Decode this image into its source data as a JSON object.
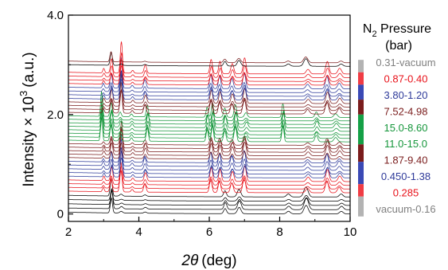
{
  "chart_data": {
    "type": "line",
    "xlabel_symbol": "2θ",
    "xlabel_unit": "(deg)",
    "ylabel_prefix": "Intensity × 10",
    "ylabel_exp": "3",
    "ylabel_unit": "(a.u.)",
    "xlim": [
      2,
      10
    ],
    "ylim": [
      -0.15,
      4.0
    ],
    "x_ticks": [
      2,
      4,
      6,
      8,
      10
    ],
    "x_tick_labels": [
      "2",
      "4",
      "6",
      "8",
      "10"
    ],
    "y_ticks": [
      0,
      2.0,
      4.0
    ],
    "y_tick_labels": [
      "0",
      "2.0",
      "4.0"
    ],
    "legend": {
      "title_line1": "N",
      "title_sub": "2",
      "title_rest": " Pressure",
      "title_line2": "(bar)",
      "position": "right",
      "entries": [
        {
          "label": "0.31-vacuum",
          "color": "#808080",
          "bar_color": "#b3b3b3",
          "y_from": 2.85,
          "y_to": 3.1
        },
        {
          "label": "0.87-0.40",
          "color": "#e8121a",
          "bar_color": "#f03c44",
          "y_from": 2.6,
          "y_to": 2.85
        },
        {
          "label": "3.80-1.20",
          "color": "#2e3a9a",
          "bar_color": "#3a49b5",
          "y_from": 2.3,
          "y_to": 2.6
        },
        {
          "label": "7.52-4.98",
          "color": "#7a1c1c",
          "bar_color": "#7a1c1c",
          "y_from": 2.0,
          "y_to": 2.3
        },
        {
          "label": "15.0-8.60",
          "color": "#15963b",
          "bar_color": "#15a046",
          "y_from": 1.7,
          "y_to": 2.0
        },
        {
          "label": "11.0-15.0",
          "color": "#15963b",
          "bar_color": "#15a046",
          "y_from": 1.4,
          "y_to": 1.7
        },
        {
          "label": "1.87-9.40",
          "color": "#7a1c1c",
          "bar_color": "#7a1c1c",
          "y_from": 1.05,
          "y_to": 1.4
        },
        {
          "label": "0.450-1.38",
          "color": "#2e3a9a",
          "bar_color": "#3a49b5",
          "y_from": 0.6,
          "y_to": 1.05
        },
        {
          "label": "0.285",
          "color": "#e8121a",
          "bar_color": "#f03c44",
          "y_from": 0.35,
          "y_to": 0.6
        },
        {
          "label": "vacuum-0.16",
          "color": "#808080",
          "bar_color": "#b3b3b3",
          "y_from": -0.05,
          "y_to": 0.35
        }
      ]
    },
    "series": [
      {
        "color": "#000000",
        "count": 5,
        "offset_start": 0.0,
        "offset_step": 0.085
      },
      {
        "color": "#e8121a",
        "count": 4,
        "offset_start": 0.425,
        "offset_step": 0.075
      },
      {
        "color": "#2e3a9a",
        "count": 5,
        "offset_start": 0.725,
        "offset_step": 0.075
      },
      {
        "color": "#7a1c1c",
        "count": 5,
        "offset_start": 1.1,
        "offset_step": 0.07
      },
      {
        "color": "#15963b",
        "count": 8,
        "offset_start": 1.45,
        "offset_step": 0.07
      },
      {
        "color": "#7a1c1c",
        "count": 4,
        "offset_start": 2.01,
        "offset_step": 0.07
      },
      {
        "color": "#2e3a9a",
        "count": 4,
        "offset_start": 2.29,
        "offset_step": 0.075
      },
      {
        "color": "#e8121a",
        "count": 4,
        "offset_start": 2.59,
        "offset_step": 0.075
      },
      {
        "color": "#000000",
        "count": 1,
        "offset_start": 2.97,
        "offset_step": 0.07
      },
      {
        "color": "#7a1c1c",
        "count": 1,
        "offset_start": 3.04,
        "offset_step": 0.07
      }
    ],
    "peak_sets": {
      "empty": [
        {
          "x": 3.22,
          "h": 0.35,
          "w": 0.03
        },
        {
          "x": 3.5,
          "h": 0.04,
          "w": 0.04
        },
        {
          "x": 4.18,
          "h": 0.03,
          "w": 0.04
        },
        {
          "x": 6.45,
          "h": 0.12,
          "w": 0.04
        },
        {
          "x": 6.85,
          "h": 0.15,
          "w": 0.05
        },
        {
          "x": 8.25,
          "h": 0.06,
          "w": 0.05
        },
        {
          "x": 8.75,
          "h": 0.2,
          "w": 0.06
        },
        {
          "x": 9.75,
          "h": 0.06,
          "w": 0.05
        }
      ],
      "loaded": [
        {
          "x": 3.0,
          "h": 0.08,
          "w": 0.025
        },
        {
          "x": 3.22,
          "h": 0.25,
          "w": 0.03
        },
        {
          "x": 3.5,
          "h": 0.55,
          "w": 0.03
        },
        {
          "x": 3.82,
          "h": 0.05,
          "w": 0.03
        },
        {
          "x": 4.18,
          "h": 0.15,
          "w": 0.035
        },
        {
          "x": 6.05,
          "h": 0.25,
          "w": 0.035
        },
        {
          "x": 6.3,
          "h": 0.22,
          "w": 0.035
        },
        {
          "x": 6.65,
          "h": 0.18,
          "w": 0.04
        },
        {
          "x": 7.0,
          "h": 0.28,
          "w": 0.04
        },
        {
          "x": 8.8,
          "h": 0.08,
          "w": 0.05
        },
        {
          "x": 9.35,
          "h": 0.22,
          "w": 0.045
        },
        {
          "x": 9.7,
          "h": 0.1,
          "w": 0.05
        }
      ],
      "high": [
        {
          "x": 2.95,
          "h": 0.55,
          "w": 0.025
        },
        {
          "x": 3.22,
          "h": 0.3,
          "w": 0.03
        },
        {
          "x": 3.48,
          "h": 0.1,
          "w": 0.03
        },
        {
          "x": 3.8,
          "h": 0.06,
          "w": 0.03
        },
        {
          "x": 4.25,
          "h": 0.25,
          "w": 0.03
        },
        {
          "x": 5.95,
          "h": 0.22,
          "w": 0.03
        },
        {
          "x": 6.1,
          "h": 0.3,
          "w": 0.03
        },
        {
          "x": 6.45,
          "h": 0.2,
          "w": 0.035
        },
        {
          "x": 6.75,
          "h": 0.28,
          "w": 0.035
        },
        {
          "x": 7.05,
          "h": 0.1,
          "w": 0.04
        },
        {
          "x": 8.1,
          "h": 0.3,
          "w": 0.03
        },
        {
          "x": 9.05,
          "h": 0.12,
          "w": 0.04
        },
        {
          "x": 9.6,
          "h": 0.08,
          "w": 0.05
        }
      ]
    }
  }
}
